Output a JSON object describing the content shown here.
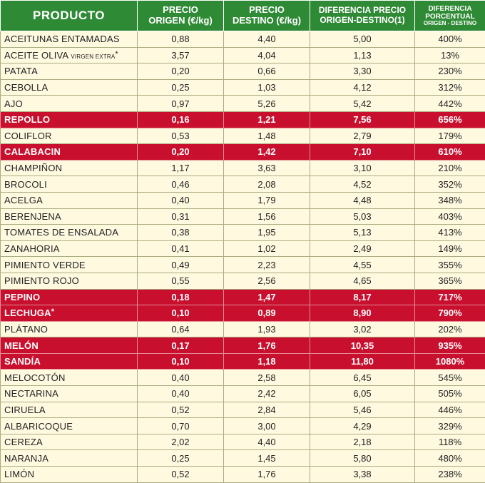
{
  "header": {
    "product": "PRODUCTO",
    "origin_l1": "PRECIO",
    "origin_l2": "ORIGEN (€/kg)",
    "dest_l1": "PRECIO",
    "dest_l2": "DESTINO (€/kg)",
    "diff_l1": "DIFERENCIA PRECIO",
    "diff_l2": "ORIGEN-DESTINO(1)",
    "pct_l1": "DIFERENCIA",
    "pct_l2": "PORCENTUAL",
    "pct_l3": "ORIGEN - DESTINO"
  },
  "rows": [
    {
      "product": "ACEITUNAS ENTAMADAS",
      "origin": "0,88",
      "dest": "4,40",
      "diff": "5,00",
      "pct": "400%",
      "hl": false
    },
    {
      "product": "ACEITE OLIVA",
      "product_small": "VIRGEN EXTRA",
      "mark": "*",
      "origin": "3,57",
      "dest": "4,04",
      "diff": "1,13",
      "pct": "13%",
      "hl": false
    },
    {
      "product": "PATATA",
      "origin": "0,20",
      "dest": "0,66",
      "diff": "3,30",
      "pct": "230%",
      "hl": false
    },
    {
      "product": "CEBOLLA",
      "origin": "0,25",
      "dest": "1,03",
      "diff": "4,12",
      "pct": "312%",
      "hl": false
    },
    {
      "product": "AJO",
      "origin": "0,97",
      "dest": "5,26",
      "diff": "5,42",
      "pct": "442%",
      "hl": false
    },
    {
      "product": "REPOLLO",
      "origin": "0,16",
      "dest": "1,21",
      "diff": "7,56",
      "pct": "656%",
      "hl": true
    },
    {
      "product": "COLIFLOR",
      "origin": "0,53",
      "dest": "1,48",
      "diff": "2,79",
      "pct": "179%",
      "hl": false
    },
    {
      "product": "CALABACIN",
      "origin": "0,20",
      "dest": "1,42",
      "diff": "7,10",
      "pct": "610%",
      "hl": true
    },
    {
      "product": "CHAMPIÑON",
      "origin": "1,17",
      "dest": "3,63",
      "diff": "3,10",
      "pct": "210%",
      "hl": false
    },
    {
      "product": "BROCOLI",
      "origin": "0,46",
      "dest": "2,08",
      "diff": "4,52",
      "pct": "352%",
      "hl": false
    },
    {
      "product": "ACELGA",
      "origin": "0,40",
      "dest": "1,79",
      "diff": "4,48",
      "pct": "348%",
      "hl": false
    },
    {
      "product": "BERENJENA",
      "origin": "0,31",
      "dest": "1,56",
      "diff": "5,03",
      "pct": "403%",
      "hl": false
    },
    {
      "product": "TOMATES DE ENSALADA",
      "origin": "0,38",
      "dest": "1,95",
      "diff": "5,13",
      "pct": "413%",
      "hl": false
    },
    {
      "product": "ZANAHORIA",
      "origin": "0,41",
      "dest": "1,02",
      "diff": "2,49",
      "pct": "149%",
      "hl": false
    },
    {
      "product": "PIMIENTO VERDE",
      "origin": "0,49",
      "dest": "2,23",
      "diff": "4,55",
      "pct": "355%",
      "hl": false
    },
    {
      "product": "PIMIENTO ROJO",
      "origin": "0,55",
      "dest": "2,56",
      "diff": "4,65",
      "pct": "365%",
      "hl": false
    },
    {
      "product": "PEPINO",
      "origin": "0,18",
      "dest": "1,47",
      "diff": "8,17",
      "pct": "717%",
      "hl": true
    },
    {
      "product": "LECHUGA",
      "mark": "*",
      "origin": "0,10",
      "dest": "0,89",
      "diff": "8,90",
      "pct": "790%",
      "hl": true
    },
    {
      "product": "PLÁTANO",
      "origin": "0,64",
      "dest": "1,93",
      "diff": "3,02",
      "pct": "202%",
      "hl": false
    },
    {
      "product": "MELÓN",
      "origin": "0,17",
      "dest": "1,76",
      "diff": "10,35",
      "pct": "935%",
      "hl": true
    },
    {
      "product": "SANDÍA",
      "origin": "0,10",
      "dest": "1,18",
      "diff": "11,80",
      "pct": "1080%",
      "hl": true
    },
    {
      "product": "MELOCOTÓN",
      "origin": "0,40",
      "dest": "2,58",
      "diff": "6,45",
      "pct": "545%",
      "hl": false
    },
    {
      "product": "NECTARINA",
      "origin": "0,40",
      "dest": "2,42",
      "diff": "6,05",
      "pct": "505%",
      "hl": false
    },
    {
      "product": "CIRUELA",
      "origin": "0,52",
      "dest": "2,84",
      "diff": "5,46",
      "pct": "446%",
      "hl": false
    },
    {
      "product": "ALBARICOQUE",
      "origin": "0,70",
      "dest": "3,00",
      "diff": "4,29",
      "pct": "329%",
      "hl": false
    },
    {
      "product": "CEREZA",
      "origin": "2,02",
      "dest": "4,40",
      "diff": "2,18",
      "pct": "118%",
      "hl": false
    },
    {
      "product": "NARANJA",
      "origin": "0,25",
      "dest": "1,45",
      "diff": "5,80",
      "pct": "480%",
      "hl": false
    },
    {
      "product": "LIMÓN",
      "origin": "0,52",
      "dest": "1,76",
      "diff": "3,38",
      "pct": "238%",
      "hl": false
    }
  ],
  "colors": {
    "header_bg": "#2f8a36",
    "row_bg": "#fff9e0",
    "highlight_bg": "#c8102e"
  }
}
